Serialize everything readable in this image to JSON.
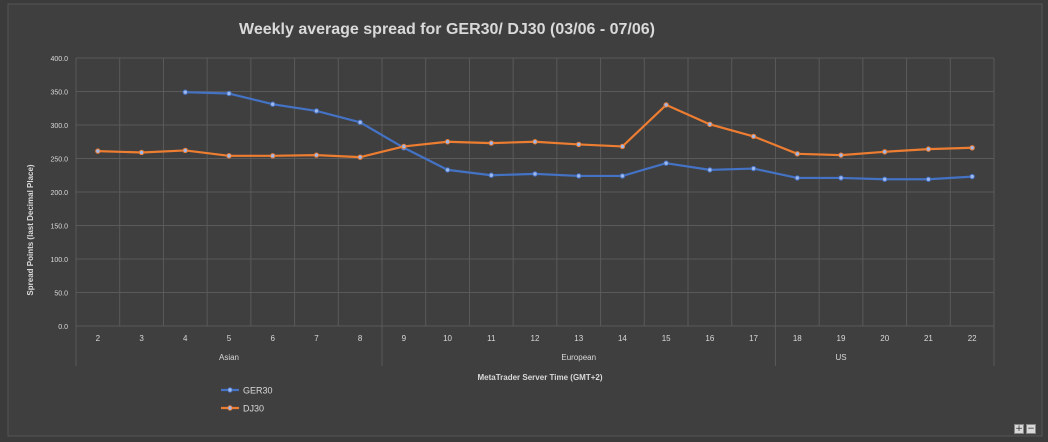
{
  "chart_data": {
    "type": "line",
    "title": "Weekly average spread for GER30/ DJ30 (03/06 - 07/06)",
    "xlabel": "MetaTrader Server Time (GMT+2)",
    "ylabel": "Spread Points  (last Decimal Place)",
    "x": [
      "2",
      "3",
      "4",
      "5",
      "6",
      "7",
      "8",
      "9",
      "10",
      "11",
      "12",
      "13",
      "14",
      "15",
      "16",
      "17",
      "18",
      "19",
      "20",
      "21",
      "22"
    ],
    "session_labels": [
      {
        "label": "Asian",
        "at": "5"
      },
      {
        "label": "European",
        "at": "13"
      },
      {
        "label": "US",
        "at": "19"
      }
    ],
    "ylim": [
      0,
      400
    ],
    "yticks": [
      "0.0",
      "50.0",
      "100.0",
      "150.0",
      "200.0",
      "250.0",
      "300.0",
      "350.0",
      "400.0"
    ],
    "grid": true,
    "legend_position": "bottom-left",
    "series": [
      {
        "name": "GER30",
        "color": "#4472c4",
        "values": [
          null,
          null,
          349,
          347,
          331,
          321,
          304,
          266,
          233,
          225,
          227,
          224,
          224,
          243,
          233,
          235,
          221,
          221,
          219,
          219,
          223
        ]
      },
      {
        "name": "DJ30",
        "color": "#ed7d31",
        "values": [
          261,
          259,
          262,
          254,
          254,
          255,
          252,
          268,
          275,
          273,
          275,
          271,
          268,
          330,
          301,
          283,
          257,
          255,
          260,
          264,
          266
        ]
      }
    ]
  },
  "controls": {
    "zoom_in": "+",
    "zoom_out": "−"
  }
}
